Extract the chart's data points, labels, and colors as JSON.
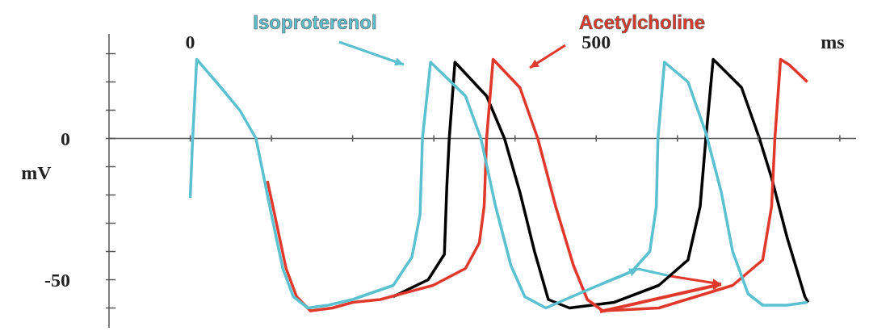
{
  "chart_data": {
    "type": "line",
    "xlabel": "ms",
    "ylabel": "mV",
    "xlim": [
      -100,
      820
    ],
    "ylim": [
      -67,
      37
    ],
    "xticks": [
      {
        "value": 0,
        "label": "0"
      },
      {
        "value": 100,
        "label": null
      },
      {
        "value": 200,
        "label": null
      },
      {
        "value": 300,
        "label": null
      },
      {
        "value": 400,
        "label": null
      },
      {
        "value": 500,
        "label": "500"
      },
      {
        "value": 600,
        "label": null
      },
      {
        "value": 700,
        "label": null
      },
      {
        "value": 800,
        "label": null
      }
    ],
    "yticks": [
      {
        "value": 30,
        "label": null
      },
      {
        "value": 20,
        "label": null
      },
      {
        "value": 10,
        "label": null
      },
      {
        "value": 0,
        "label": "0"
      },
      {
        "value": -10,
        "label": null
      },
      {
        "value": -20,
        "label": null
      },
      {
        "value": -30,
        "label": null
      },
      {
        "value": -40,
        "label": null
      },
      {
        "value": -50,
        "label": "-50"
      },
      {
        "value": -60,
        "label": null
      }
    ],
    "marker": "none",
    "line_style": "solid",
    "series": [
      {
        "color": "#000000",
        "x": [
          250,
          293,
          313,
          316,
          319,
          326,
          365,
          387,
          406,
          424,
          441,
          467,
          522,
          577,
          613,
          628,
          635,
          644,
          679,
          701,
          716,
          735,
          757,
          761
        ],
        "values": [
          -56,
          -50,
          -41,
          -17,
          0,
          27,
          15,
          0,
          -19,
          -40,
          -57,
          -60,
          -58,
          -52,
          -43,
          -24,
          0,
          28,
          18,
          0,
          -14,
          -35,
          -56,
          -58
        ]
      },
      {
        "name": "Acetylcholine",
        "color": "#e0392b",
        "x": [
          95,
          104,
          118,
          131,
          148,
          175,
          200,
          234,
          299,
          339,
          356,
          362,
          365,
          373,
          406,
          428,
          450,
          472,
          489,
          508,
          577,
          668,
          705,
          716,
          720,
          727,
          738,
          760
        ],
        "values": [
          -15,
          -27,
          -46,
          -56,
          -61,
          -60,
          -58,
          -57,
          -52,
          -46,
          -37,
          -24,
          0,
          28,
          18,
          0,
          -24,
          -45,
          -57,
          -61,
          -60,
          -52,
          -43,
          -24,
          0,
          28,
          26,
          20
        ]
      },
      {
        "name": "Isoproterenol",
        "color": "#5bc0d0",
        "x": [
          0,
          3,
          8,
          35,
          61,
          81,
          100,
          114,
          127,
          145,
          170,
          200,
          250,
          273,
          283,
          286,
          296,
          339,
          358,
          376,
          395,
          412,
          438,
          486,
          544,
          566,
          574,
          576,
          584,
          613,
          635,
          654,
          668,
          687,
          705,
          735,
          760
        ],
        "values": [
          -21,
          0,
          28,
          19,
          10,
          0,
          -27,
          -46,
          -56,
          -60,
          -59,
          -57,
          -52,
          -42,
          -27,
          0,
          27,
          15,
          0,
          -24,
          -45,
          -56,
          -60,
          -54,
          -47,
          -40,
          -24,
          0,
          27,
          20,
          2,
          -19,
          -40,
          -55,
          -59,
          -59,
          -58
        ]
      }
    ]
  }
}
